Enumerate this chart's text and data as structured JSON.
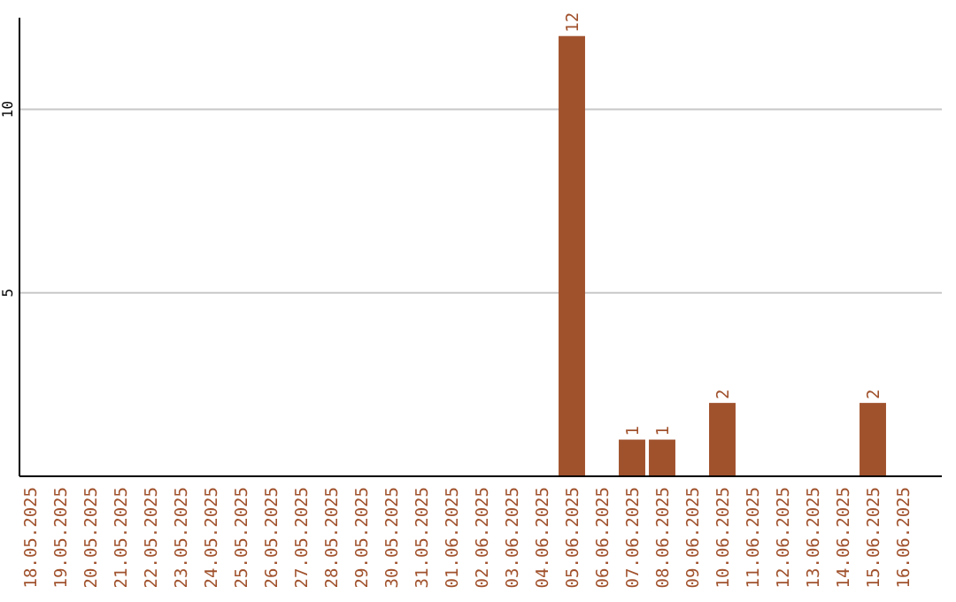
{
  "chart_data": {
    "type": "bar",
    "categories": [
      "18.05.2025",
      "19.05.2025",
      "20.05.2025",
      "21.05.2025",
      "22.05.2025",
      "23.05.2025",
      "24.05.2025",
      "25.05.2025",
      "26.05.2025",
      "27.05.2025",
      "28.05.2025",
      "29.05.2025",
      "30.05.2025",
      "31.05.2025",
      "01.06.2025",
      "02.06.2025",
      "03.06.2025",
      "04.06.2025",
      "05.06.2025",
      "06.06.2025",
      "07.06.2025",
      "08.06.2025",
      "09.06.2025",
      "10.06.2025",
      "11.06.2025",
      "12.06.2025",
      "13.06.2025",
      "14.06.2025",
      "15.06.2025",
      "16.06.2025"
    ],
    "values": [
      0,
      0,
      0,
      0,
      0,
      0,
      0,
      0,
      0,
      0,
      0,
      0,
      0,
      0,
      0,
      0,
      0,
      0,
      12,
      0,
      1,
      1,
      0,
      2,
      0,
      0,
      0,
      0,
      2,
      0
    ],
    "value_labels": [
      null,
      null,
      null,
      null,
      null,
      null,
      null,
      null,
      null,
      null,
      null,
      null,
      null,
      null,
      null,
      null,
      null,
      null,
      "12",
      null,
      "1",
      "1",
      null,
      "2",
      null,
      null,
      null,
      null,
      "2",
      null
    ],
    "color": "#a0522d",
    "ylim": [
      0,
      12.5
    ],
    "yticks": [
      5,
      10
    ],
    "grid": "y"
  }
}
